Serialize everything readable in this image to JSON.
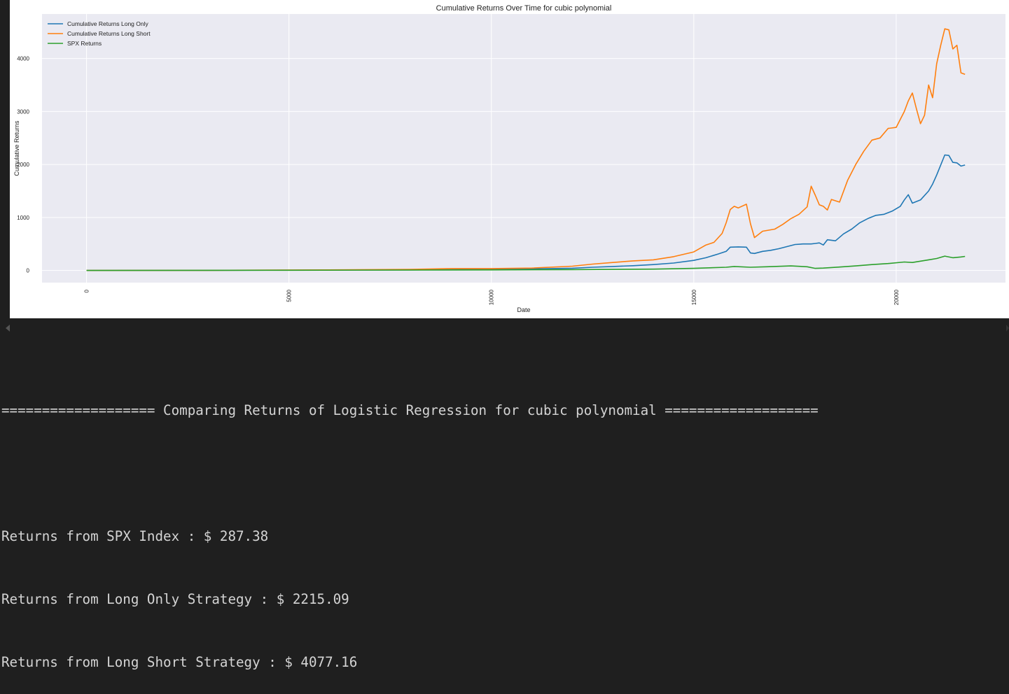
{
  "chart_data": {
    "type": "line",
    "title": "Cumulative Returns Over Time for cubic polynomial",
    "xlabel": "Date",
    "ylabel": "Cumulative Returns",
    "xlim": [
      -1100,
      22700
    ],
    "ylim": [
      -230,
      4840
    ],
    "xticks": [
      0,
      5000,
      10000,
      15000,
      20000
    ],
    "yticks": [
      0,
      1000,
      2000,
      3000,
      4000
    ],
    "grid": true,
    "legend": "top-left",
    "series": [
      {
        "name": "Cumulative Returns Long Only",
        "color": "#1f77b4",
        "points": [
          [
            0,
            0
          ],
          [
            3000,
            2
          ],
          [
            6000,
            6
          ],
          [
            8000,
            10
          ],
          [
            9000,
            16
          ],
          [
            10000,
            22
          ],
          [
            11000,
            30
          ],
          [
            12000,
            42
          ],
          [
            12500,
            60
          ],
          [
            13000,
            75
          ],
          [
            13500,
            90
          ],
          [
            14000,
            110
          ],
          [
            14500,
            140
          ],
          [
            15000,
            190
          ],
          [
            15300,
            240
          ],
          [
            15600,
            310
          ],
          [
            15800,
            360
          ],
          [
            15900,
            440
          ],
          [
            16100,
            445
          ],
          [
            16300,
            440
          ],
          [
            16400,
            330
          ],
          [
            16500,
            320
          ],
          [
            16700,
            360
          ],
          [
            16900,
            380
          ],
          [
            17100,
            410
          ],
          [
            17300,
            450
          ],
          [
            17500,
            490
          ],
          [
            17700,
            500
          ],
          [
            17900,
            500
          ],
          [
            18000,
            510
          ],
          [
            18100,
            520
          ],
          [
            18200,
            480
          ],
          [
            18300,
            580
          ],
          [
            18500,
            560
          ],
          [
            18700,
            690
          ],
          [
            18900,
            780
          ],
          [
            19100,
            900
          ],
          [
            19300,
            980
          ],
          [
            19500,
            1040
          ],
          [
            19700,
            1060
          ],
          [
            19900,
            1120
          ],
          [
            20100,
            1210
          ],
          [
            20200,
            1330
          ],
          [
            20300,
            1430
          ],
          [
            20400,
            1270
          ],
          [
            20600,
            1330
          ],
          [
            20800,
            1500
          ],
          [
            20900,
            1630
          ],
          [
            21000,
            1800
          ],
          [
            21200,
            2180
          ],
          [
            21300,
            2170
          ],
          [
            21400,
            2040
          ],
          [
            21500,
            2030
          ],
          [
            21600,
            1970
          ],
          [
            21700,
            1990
          ]
        ]
      },
      {
        "name": "Cumulative Returns Long Short",
        "color": "#ff7f0e",
        "points": [
          [
            0,
            0
          ],
          [
            3000,
            3
          ],
          [
            6000,
            10
          ],
          [
            8000,
            20
          ],
          [
            9000,
            35
          ],
          [
            10000,
            35
          ],
          [
            11000,
            45
          ],
          [
            12000,
            80
          ],
          [
            12500,
            120
          ],
          [
            13000,
            150
          ],
          [
            13500,
            180
          ],
          [
            14000,
            200
          ],
          [
            14500,
            260
          ],
          [
            15000,
            350
          ],
          [
            15300,
            480
          ],
          [
            15500,
            530
          ],
          [
            15700,
            700
          ],
          [
            15800,
            900
          ],
          [
            15900,
            1150
          ],
          [
            16000,
            1210
          ],
          [
            16100,
            1180
          ],
          [
            16300,
            1250
          ],
          [
            16400,
            880
          ],
          [
            16500,
            620
          ],
          [
            16700,
            740
          ],
          [
            17000,
            780
          ],
          [
            17200,
            870
          ],
          [
            17400,
            980
          ],
          [
            17600,
            1060
          ],
          [
            17800,
            1200
          ],
          [
            17900,
            1590
          ],
          [
            18000,
            1420
          ],
          [
            18100,
            1240
          ],
          [
            18200,
            1210
          ],
          [
            18300,
            1140
          ],
          [
            18400,
            1340
          ],
          [
            18600,
            1290
          ],
          [
            18800,
            1700
          ],
          [
            19000,
            2000
          ],
          [
            19200,
            2250
          ],
          [
            19400,
            2460
          ],
          [
            19600,
            2500
          ],
          [
            19800,
            2680
          ],
          [
            20000,
            2700
          ],
          [
            20200,
            3000
          ],
          [
            20300,
            3200
          ],
          [
            20400,
            3350
          ],
          [
            20500,
            3050
          ],
          [
            20600,
            2770
          ],
          [
            20700,
            2930
          ],
          [
            20800,
            3500
          ],
          [
            20900,
            3260
          ],
          [
            21000,
            3900
          ],
          [
            21100,
            4250
          ],
          [
            21200,
            4560
          ],
          [
            21300,
            4540
          ],
          [
            21400,
            4180
          ],
          [
            21500,
            4250
          ],
          [
            21600,
            3730
          ],
          [
            21700,
            3700
          ]
        ]
      },
      {
        "name": "SPX Returns",
        "color": "#2ca02c",
        "points": [
          [
            0,
            0
          ],
          [
            5000,
            4
          ],
          [
            10000,
            10
          ],
          [
            12000,
            15
          ],
          [
            14000,
            25
          ],
          [
            15000,
            40
          ],
          [
            15800,
            60
          ],
          [
            16000,
            75
          ],
          [
            16400,
            60
          ],
          [
            16800,
            70
          ],
          [
            17400,
            85
          ],
          [
            17800,
            70
          ],
          [
            18000,
            40
          ],
          [
            18200,
            45
          ],
          [
            18600,
            65
          ],
          [
            19000,
            85
          ],
          [
            19400,
            110
          ],
          [
            19800,
            130
          ],
          [
            20200,
            160
          ],
          [
            20400,
            150
          ],
          [
            20600,
            175
          ],
          [
            20800,
            200
          ],
          [
            21000,
            225
          ],
          [
            21200,
            270
          ],
          [
            21400,
            240
          ],
          [
            21600,
            255
          ],
          [
            21700,
            265
          ]
        ]
      }
    ]
  },
  "console": {
    "header": "=================== Comparing Returns of Logistic Regression for cubic polynomial ===================",
    "lines": [
      "Returns from SPX Index : $ 287.38",
      "Returns from Long Only Strategy : $ 2215.09",
      "Returns from Long Short Strategy : $ 4077.16"
    ]
  }
}
